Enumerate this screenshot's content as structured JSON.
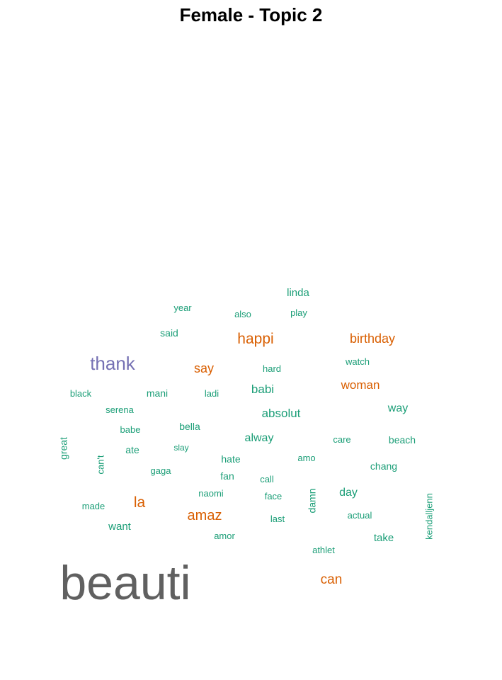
{
  "chart_data": {
    "type": "wordcloud",
    "title": "Female - Topic 2",
    "colors": {
      "gray": "#606060",
      "purple": "#7570b3",
      "orange": "#d95f02",
      "green": "#1b9e77"
    },
    "words": [
      {
        "text": "beauti",
        "weight": 10,
        "color": "gray"
      },
      {
        "text": "thank",
        "weight": 4,
        "color": "purple"
      },
      {
        "text": "happi",
        "weight": 3,
        "color": "orange"
      },
      {
        "text": "birthday",
        "weight": 3,
        "color": "orange"
      },
      {
        "text": "say",
        "weight": 3,
        "color": "orange"
      },
      {
        "text": "woman",
        "weight": 3,
        "color": "orange"
      },
      {
        "text": "la",
        "weight": 3,
        "color": "orange"
      },
      {
        "text": "amaz",
        "weight": 3,
        "color": "orange"
      },
      {
        "text": "can",
        "weight": 3,
        "color": "orange"
      },
      {
        "text": "babi",
        "weight": 2,
        "color": "green"
      },
      {
        "text": "absolut",
        "weight": 2,
        "color": "green"
      },
      {
        "text": "way",
        "weight": 2,
        "color": "green"
      },
      {
        "text": "alway",
        "weight": 2,
        "color": "green"
      },
      {
        "text": "day",
        "weight": 2,
        "color": "green"
      },
      {
        "text": "want",
        "weight": 2,
        "color": "green"
      },
      {
        "text": "linda",
        "weight": 1,
        "color": "green"
      },
      {
        "text": "year",
        "weight": 1,
        "color": "green"
      },
      {
        "text": "also",
        "weight": 1,
        "color": "green"
      },
      {
        "text": "play",
        "weight": 1,
        "color": "green"
      },
      {
        "text": "said",
        "weight": 1,
        "color": "green"
      },
      {
        "text": "hard",
        "weight": 1,
        "color": "green"
      },
      {
        "text": "watch",
        "weight": 1,
        "color": "green"
      },
      {
        "text": "black",
        "weight": 1,
        "color": "green"
      },
      {
        "text": "mani",
        "weight": 1,
        "color": "green"
      },
      {
        "text": "ladi",
        "weight": 1,
        "color": "green"
      },
      {
        "text": "serena",
        "weight": 1,
        "color": "green"
      },
      {
        "text": "babe",
        "weight": 1,
        "color": "green"
      },
      {
        "text": "bella",
        "weight": 1,
        "color": "green"
      },
      {
        "text": "great",
        "weight": 1,
        "color": "green"
      },
      {
        "text": "ate",
        "weight": 1,
        "color": "green"
      },
      {
        "text": "slay",
        "weight": 1,
        "color": "green"
      },
      {
        "text": "care",
        "weight": 1,
        "color": "green"
      },
      {
        "text": "beach",
        "weight": 1,
        "color": "green"
      },
      {
        "text": "can't",
        "weight": 1,
        "color": "green"
      },
      {
        "text": "hate",
        "weight": 1,
        "color": "green"
      },
      {
        "text": "amo",
        "weight": 1,
        "color": "green"
      },
      {
        "text": "gaga",
        "weight": 1,
        "color": "green"
      },
      {
        "text": "chang",
        "weight": 1,
        "color": "green"
      },
      {
        "text": "fan",
        "weight": 1,
        "color": "green"
      },
      {
        "text": "call",
        "weight": 1,
        "color": "green"
      },
      {
        "text": "naomi",
        "weight": 1,
        "color": "green"
      },
      {
        "text": "damn",
        "weight": 1,
        "color": "green"
      },
      {
        "text": "face",
        "weight": 1,
        "color": "green"
      },
      {
        "text": "made",
        "weight": 1,
        "color": "green"
      },
      {
        "text": "kendalljenn",
        "weight": 1,
        "color": "green"
      },
      {
        "text": "last",
        "weight": 1,
        "color": "green"
      },
      {
        "text": "actual",
        "weight": 1,
        "color": "green"
      },
      {
        "text": "amor",
        "weight": 1,
        "color": "green"
      },
      {
        "text": "take",
        "weight": 1,
        "color": "green"
      },
      {
        "text": "athlet",
        "weight": 1,
        "color": "green"
      }
    ]
  }
}
